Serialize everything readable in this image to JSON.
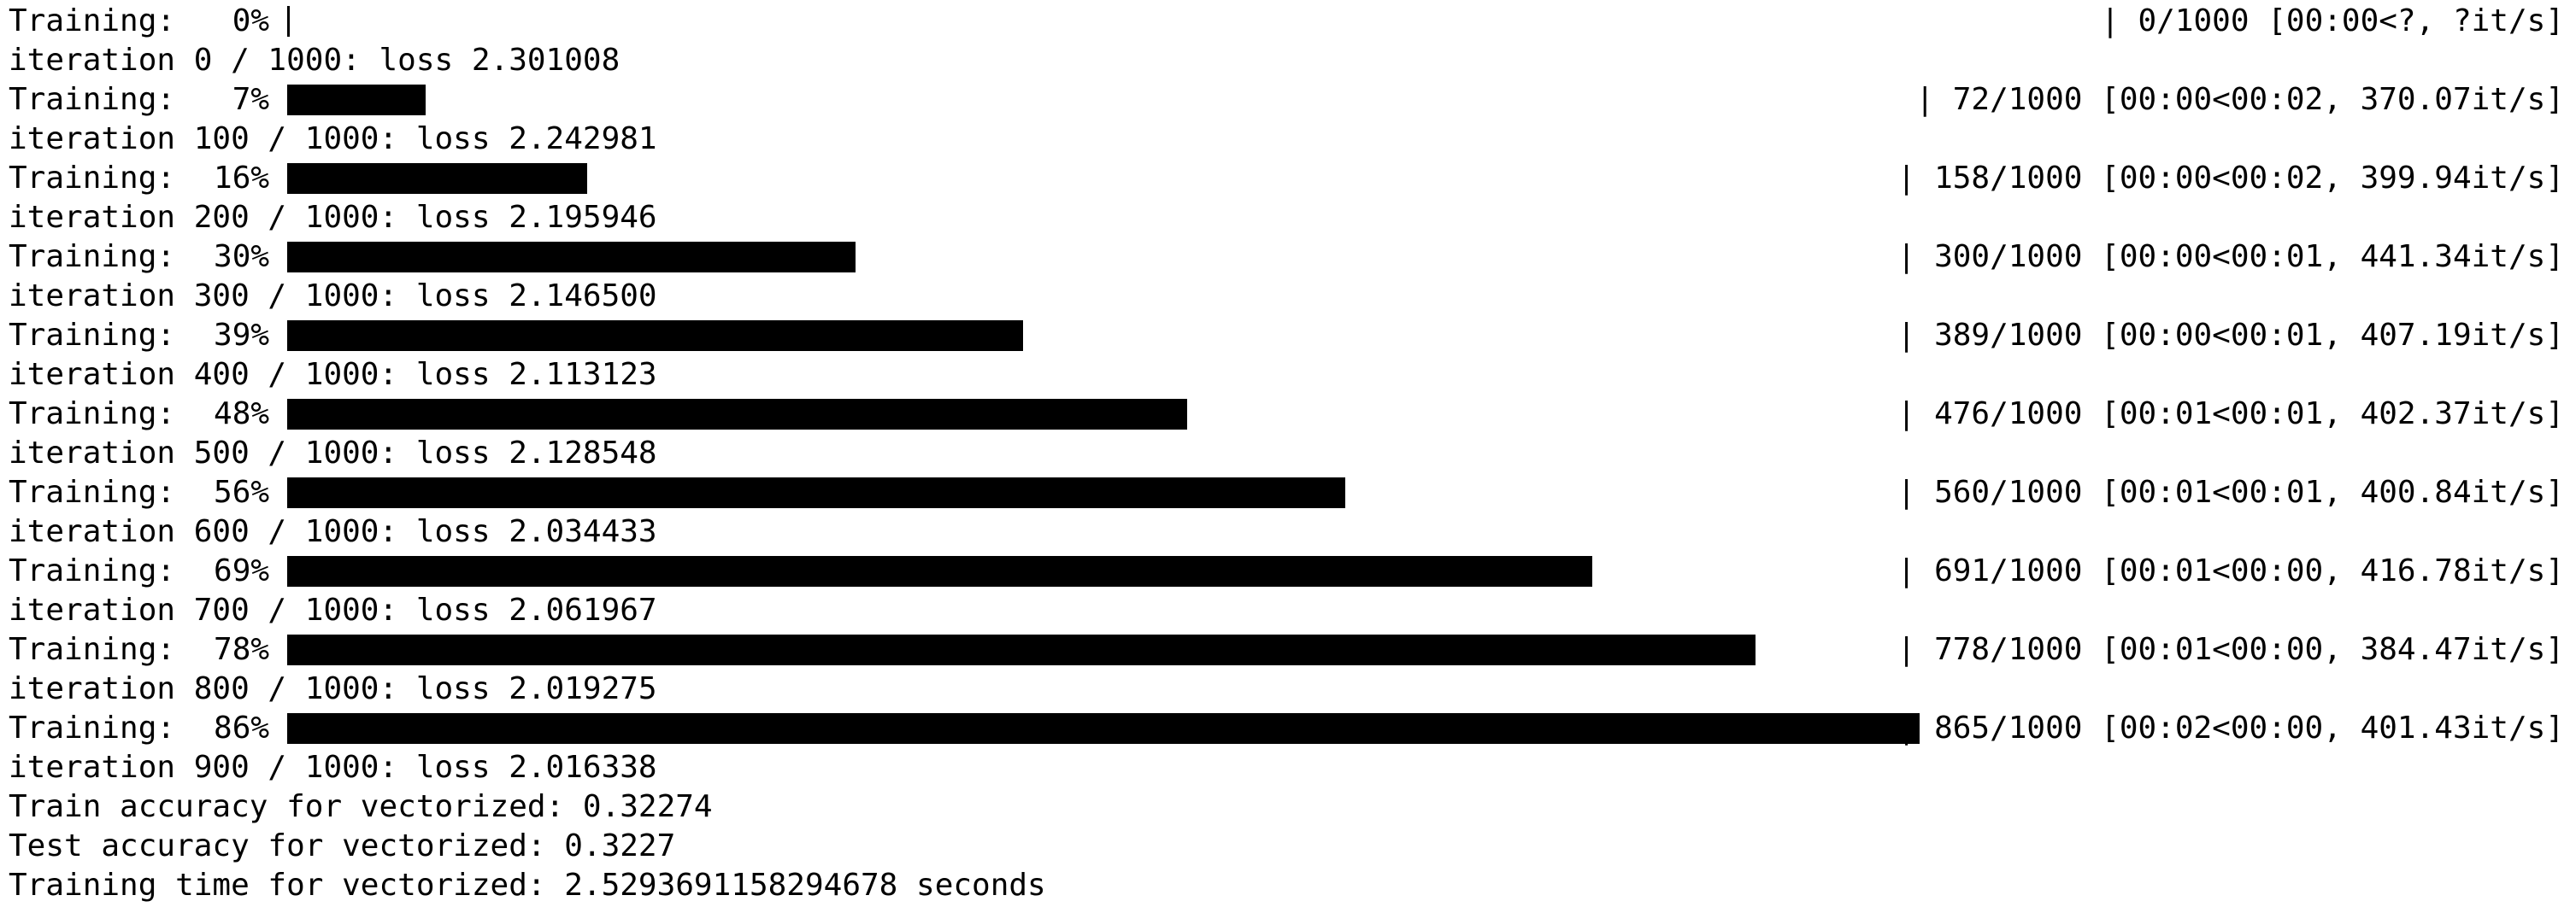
{
  "terminal": {
    "progress_rows": [
      {
        "label": "Training:",
        "percent": "0%",
        "fraction": 0.0,
        "count": "0/1000",
        "timing": "[00:00<?, ?it/s]"
      },
      {
        "label": "Training:",
        "percent": "7%",
        "fraction": 0.072,
        "count": "72/1000",
        "timing": "[00:00<00:02, 370.07it/s]"
      },
      {
        "label": "Training:",
        "percent": "16%",
        "fraction": 0.158,
        "count": "158/1000",
        "timing": "[00:00<00:02, 399.94it/s]"
      },
      {
        "label": "Training:",
        "percent": "30%",
        "fraction": 0.3,
        "count": "300/1000",
        "timing": "[00:00<00:01, 441.34it/s]"
      },
      {
        "label": "Training:",
        "percent": "39%",
        "fraction": 0.389,
        "count": "389/1000",
        "timing": "[00:00<00:01, 407.19it/s]"
      },
      {
        "label": "Training:",
        "percent": "48%",
        "fraction": 0.476,
        "count": "476/1000",
        "timing": "[00:01<00:01, 402.37it/s]"
      },
      {
        "label": "Training:",
        "percent": "56%",
        "fraction": 0.56,
        "count": "560/1000",
        "timing": "[00:01<00:01, 400.84it/s]"
      },
      {
        "label": "Training:",
        "percent": "69%",
        "fraction": 0.691,
        "count": "691/1000",
        "timing": "[00:01<00:00, 416.78it/s]"
      },
      {
        "label": "Training:",
        "percent": "78%",
        "fraction": 0.778,
        "count": "778/1000",
        "timing": "[00:01<00:00, 384.47it/s]"
      },
      {
        "label": "Training:",
        "percent": "86%",
        "fraction": 0.865,
        "count": "865/1000",
        "timing": "[00:02<00:00, 401.43it/s]"
      }
    ],
    "iteration_lines": [
      "iteration 0 / 1000: loss 2.301008",
      "iteration 100 / 1000: loss 2.242981",
      "iteration 200 / 1000: loss 2.195946",
      "iteration 300 / 1000: loss 2.146500",
      "iteration 400 / 1000: loss 2.113123",
      "iteration 500 / 1000: loss 2.128548",
      "iteration 600 / 1000: loss 2.034433",
      "iteration 700 / 1000: loss 2.061967",
      "iteration 800 / 1000: loss 2.019275",
      "iteration 900 / 1000: loss 2.016338"
    ],
    "summary_lines": [
      "Train accuracy for vectorized: 0.32274",
      "Test accuracy for vectorized: 0.3227",
      "Training time for vectorized: 2.5293691158294678 seconds"
    ]
  }
}
